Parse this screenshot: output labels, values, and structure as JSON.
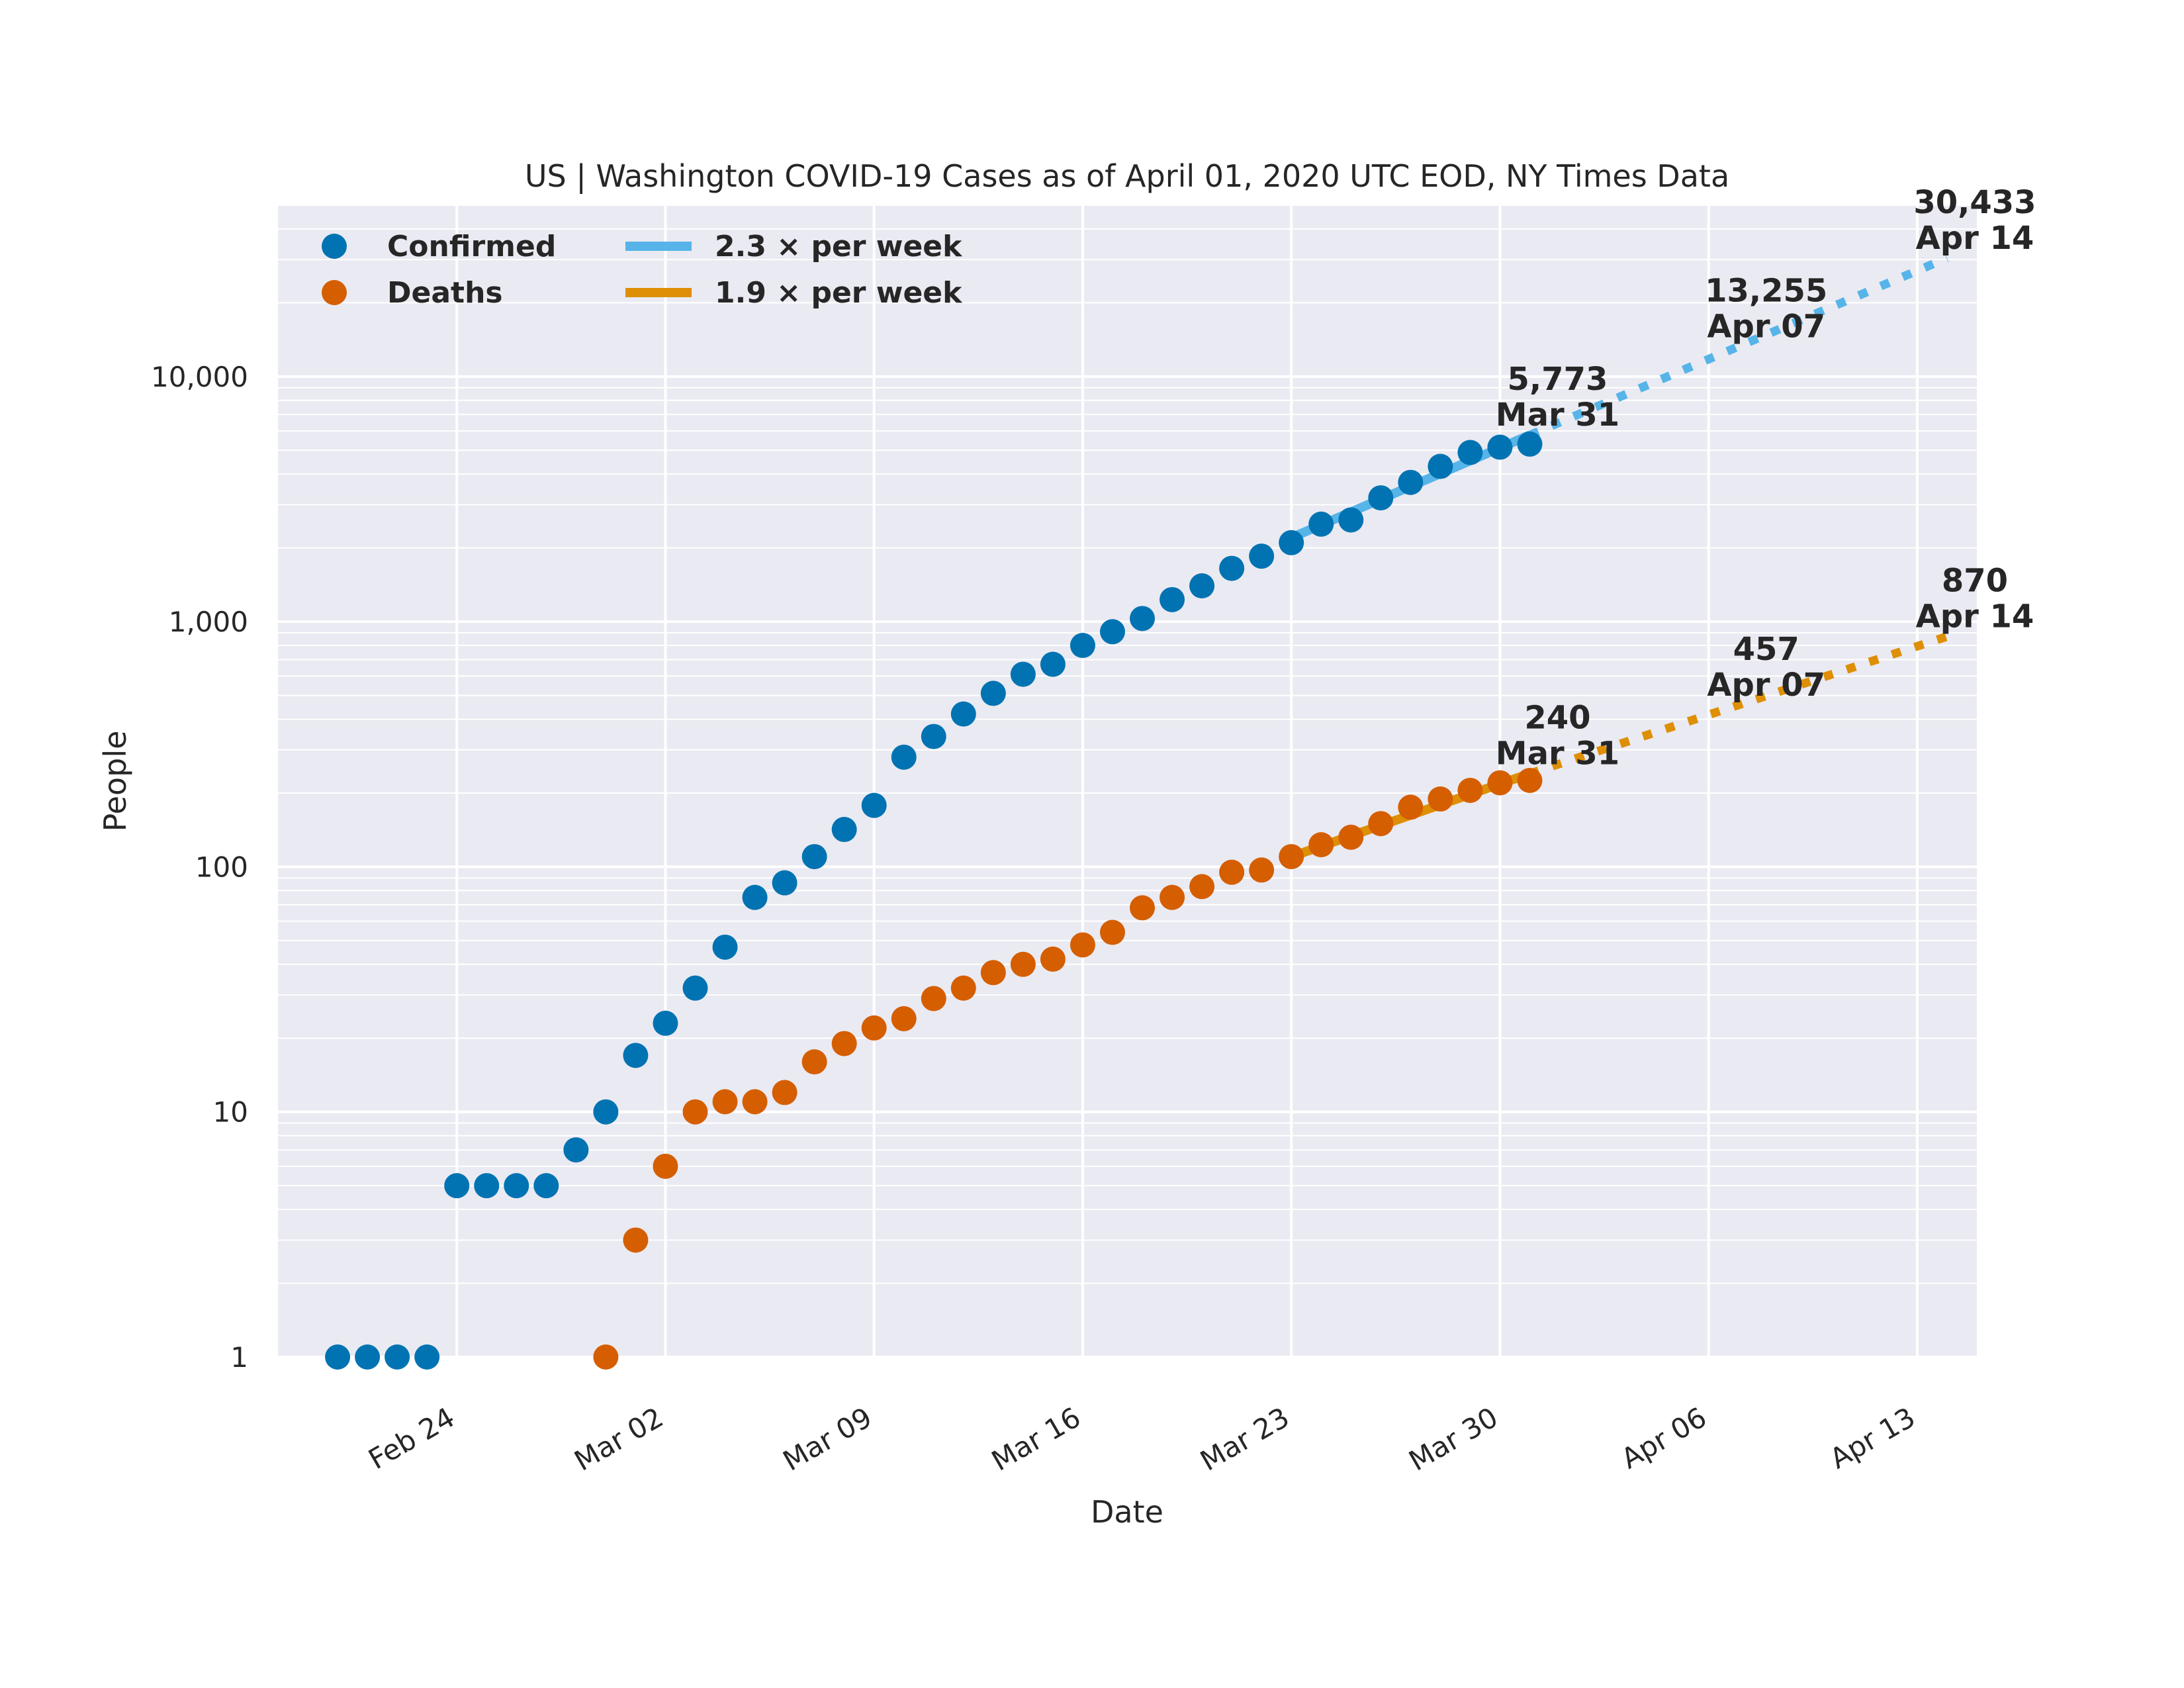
{
  "chart_data": {
    "type": "scatter",
    "title": "US | Washington COVID-19 Cases as of April 01, 2020 UTC EOD, NY Times Data",
    "xlabel": "Date",
    "ylabel": "People",
    "y_scale": "log",
    "ylim": [
      1,
      50000
    ],
    "xlim": [
      "2020-02-18",
      "2020-04-15"
    ],
    "grid": true,
    "legend_position": "top-left",
    "x_ticks": [
      "2020-02-24",
      "2020-03-02",
      "2020-03-09",
      "2020-03-16",
      "2020-03-23",
      "2020-03-30",
      "2020-04-06",
      "2020-04-13"
    ],
    "x_tick_labels": [
      "Feb 24",
      "Mar 02",
      "Mar 09",
      "Mar 16",
      "Mar 23",
      "Mar 30",
      "Apr 06",
      "Apr 13"
    ],
    "y_ticks": [
      1,
      10,
      100,
      1000,
      10000
    ],
    "y_tick_labels": [
      "1",
      "10",
      "100",
      "1,000",
      "10,000"
    ],
    "series": [
      {
        "name": "Confirmed",
        "color": "#0173b2",
        "points": [
          [
            "2020-02-20",
            1
          ],
          [
            "2020-02-21",
            1
          ],
          [
            "2020-02-22",
            1
          ],
          [
            "2020-02-23",
            1
          ],
          [
            "2020-02-24",
            5
          ],
          [
            "2020-02-25",
            5
          ],
          [
            "2020-02-26",
            5
          ],
          [
            "2020-02-27",
            5
          ],
          [
            "2020-02-28",
            7
          ],
          [
            "2020-02-29",
            10
          ],
          [
            "2020-03-01",
            17
          ],
          [
            "2020-03-02",
            23
          ],
          [
            "2020-03-03",
            32
          ],
          [
            "2020-03-04",
            47
          ],
          [
            "2020-03-05",
            75
          ],
          [
            "2020-03-06",
            86
          ],
          [
            "2020-03-07",
            110
          ],
          [
            "2020-03-08",
            142
          ],
          [
            "2020-03-09",
            178
          ],
          [
            "2020-03-10",
            280
          ],
          [
            "2020-03-11",
            340
          ],
          [
            "2020-03-12",
            420
          ],
          [
            "2020-03-13",
            510
          ],
          [
            "2020-03-14",
            610
          ],
          [
            "2020-03-15",
            670
          ],
          [
            "2020-03-16",
            800
          ],
          [
            "2020-03-17",
            910
          ],
          [
            "2020-03-18",
            1030
          ],
          [
            "2020-03-19",
            1230
          ],
          [
            "2020-03-20",
            1400
          ],
          [
            "2020-03-21",
            1650
          ],
          [
            "2020-03-22",
            1850
          ],
          [
            "2020-03-23",
            2100
          ],
          [
            "2020-03-24",
            2500
          ],
          [
            "2020-03-25",
            2600
          ],
          [
            "2020-03-26",
            3200
          ],
          [
            "2020-03-27",
            3700
          ],
          [
            "2020-03-28",
            4300
          ],
          [
            "2020-03-29",
            4900
          ],
          [
            "2020-03-30",
            5150
          ],
          [
            "2020-03-31",
            5300
          ]
        ]
      },
      {
        "name": "Deaths",
        "color": "#d55e00",
        "points": [
          [
            "2020-02-29",
            1
          ],
          [
            "2020-03-01",
            3
          ],
          [
            "2020-03-02",
            6
          ],
          [
            "2020-03-03",
            10
          ],
          [
            "2020-03-04",
            11
          ],
          [
            "2020-03-05",
            11
          ],
          [
            "2020-03-06",
            12
          ],
          [
            "2020-03-07",
            16
          ],
          [
            "2020-03-08",
            19
          ],
          [
            "2020-03-09",
            22
          ],
          [
            "2020-03-10",
            24
          ],
          [
            "2020-03-11",
            29
          ],
          [
            "2020-03-12",
            32
          ],
          [
            "2020-03-13",
            37
          ],
          [
            "2020-03-14",
            40
          ],
          [
            "2020-03-15",
            42
          ],
          [
            "2020-03-16",
            48
          ],
          [
            "2020-03-17",
            54
          ],
          [
            "2020-03-18",
            68
          ],
          [
            "2020-03-19",
            75
          ],
          [
            "2020-03-20",
            83
          ],
          [
            "2020-03-21",
            95
          ],
          [
            "2020-03-22",
            97
          ],
          [
            "2020-03-23",
            110
          ],
          [
            "2020-03-24",
            123
          ],
          [
            "2020-03-25",
            132
          ],
          [
            "2020-03-26",
            150
          ],
          [
            "2020-03-27",
            175
          ],
          [
            "2020-03-28",
            189
          ],
          [
            "2020-03-29",
            205
          ],
          [
            "2020-03-30",
            220
          ],
          [
            "2020-03-31",
            225
          ]
        ]
      }
    ],
    "trend_lines": [
      {
        "name": "2.3 × per week",
        "color": "#56b4e9",
        "fit": [
          [
            "2020-03-23",
            2200
          ],
          [
            "2020-03-31",
            5773
          ]
        ],
        "projection": [
          [
            "2020-03-31",
            5773
          ],
          [
            "2020-04-07",
            13255
          ],
          [
            "2020-04-14",
            30433
          ]
        ]
      },
      {
        "name": "1.9 × per week",
        "color": "#de8f05",
        "fit": [
          [
            "2020-03-23",
            110
          ],
          [
            "2020-03-31",
            240
          ]
        ],
        "projection": [
          [
            "2020-03-31",
            240
          ],
          [
            "2020-04-07",
            457
          ],
          [
            "2020-04-14",
            870
          ]
        ]
      }
    ],
    "annotations": [
      {
        "value": "5,773",
        "date": "Mar 31",
        "at": [
          "2020-03-31",
          5773
        ]
      },
      {
        "value": "13,255",
        "date": "Apr 07",
        "at": [
          "2020-04-07",
          13255
        ]
      },
      {
        "value": "30,433",
        "date": "Apr 14",
        "at": [
          "2020-04-14",
          30433
        ]
      },
      {
        "value": "240",
        "date": "Mar 31",
        "at": [
          "2020-03-31",
          240
        ]
      },
      {
        "value": "457",
        "date": "Apr 07",
        "at": [
          "2020-04-07",
          457
        ]
      },
      {
        "value": "870",
        "date": "Apr 14",
        "at": [
          "2020-04-14",
          870
        ]
      }
    ]
  }
}
